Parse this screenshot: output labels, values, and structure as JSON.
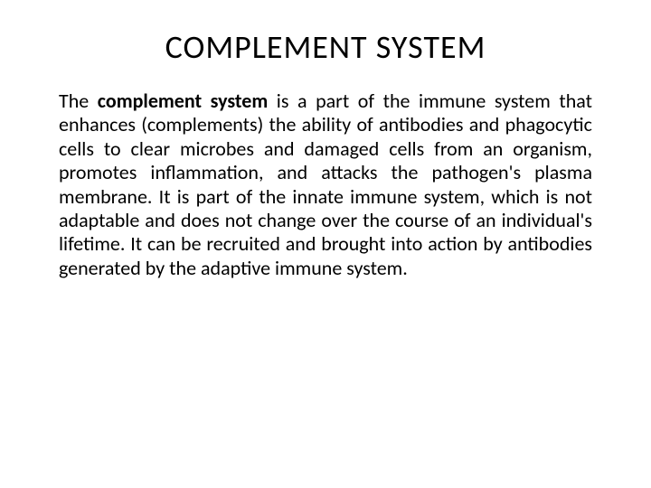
{
  "title": "COMPLEMENT SYSTEM",
  "body": {
    "prefix": "The ",
    "bold": "complement system",
    "rest": " is a part of the immune system that enhances (complements) the ability of antibodies and phagocytic cells to clear microbes and damaged cells from an organism, promotes inflammation, and attacks the pathogen's plasma membrane. It is part of the innate immune system, which is not adaptable and does not change over the course of an individual's lifetime. It can be recruited and brought into action by antibodies generated by the adaptive immune system."
  },
  "colors": {
    "background": "#ffffff",
    "text": "#000000"
  },
  "typography": {
    "title_fontsize": 36,
    "body_fontsize": 22,
    "font_family": "Calibri"
  }
}
